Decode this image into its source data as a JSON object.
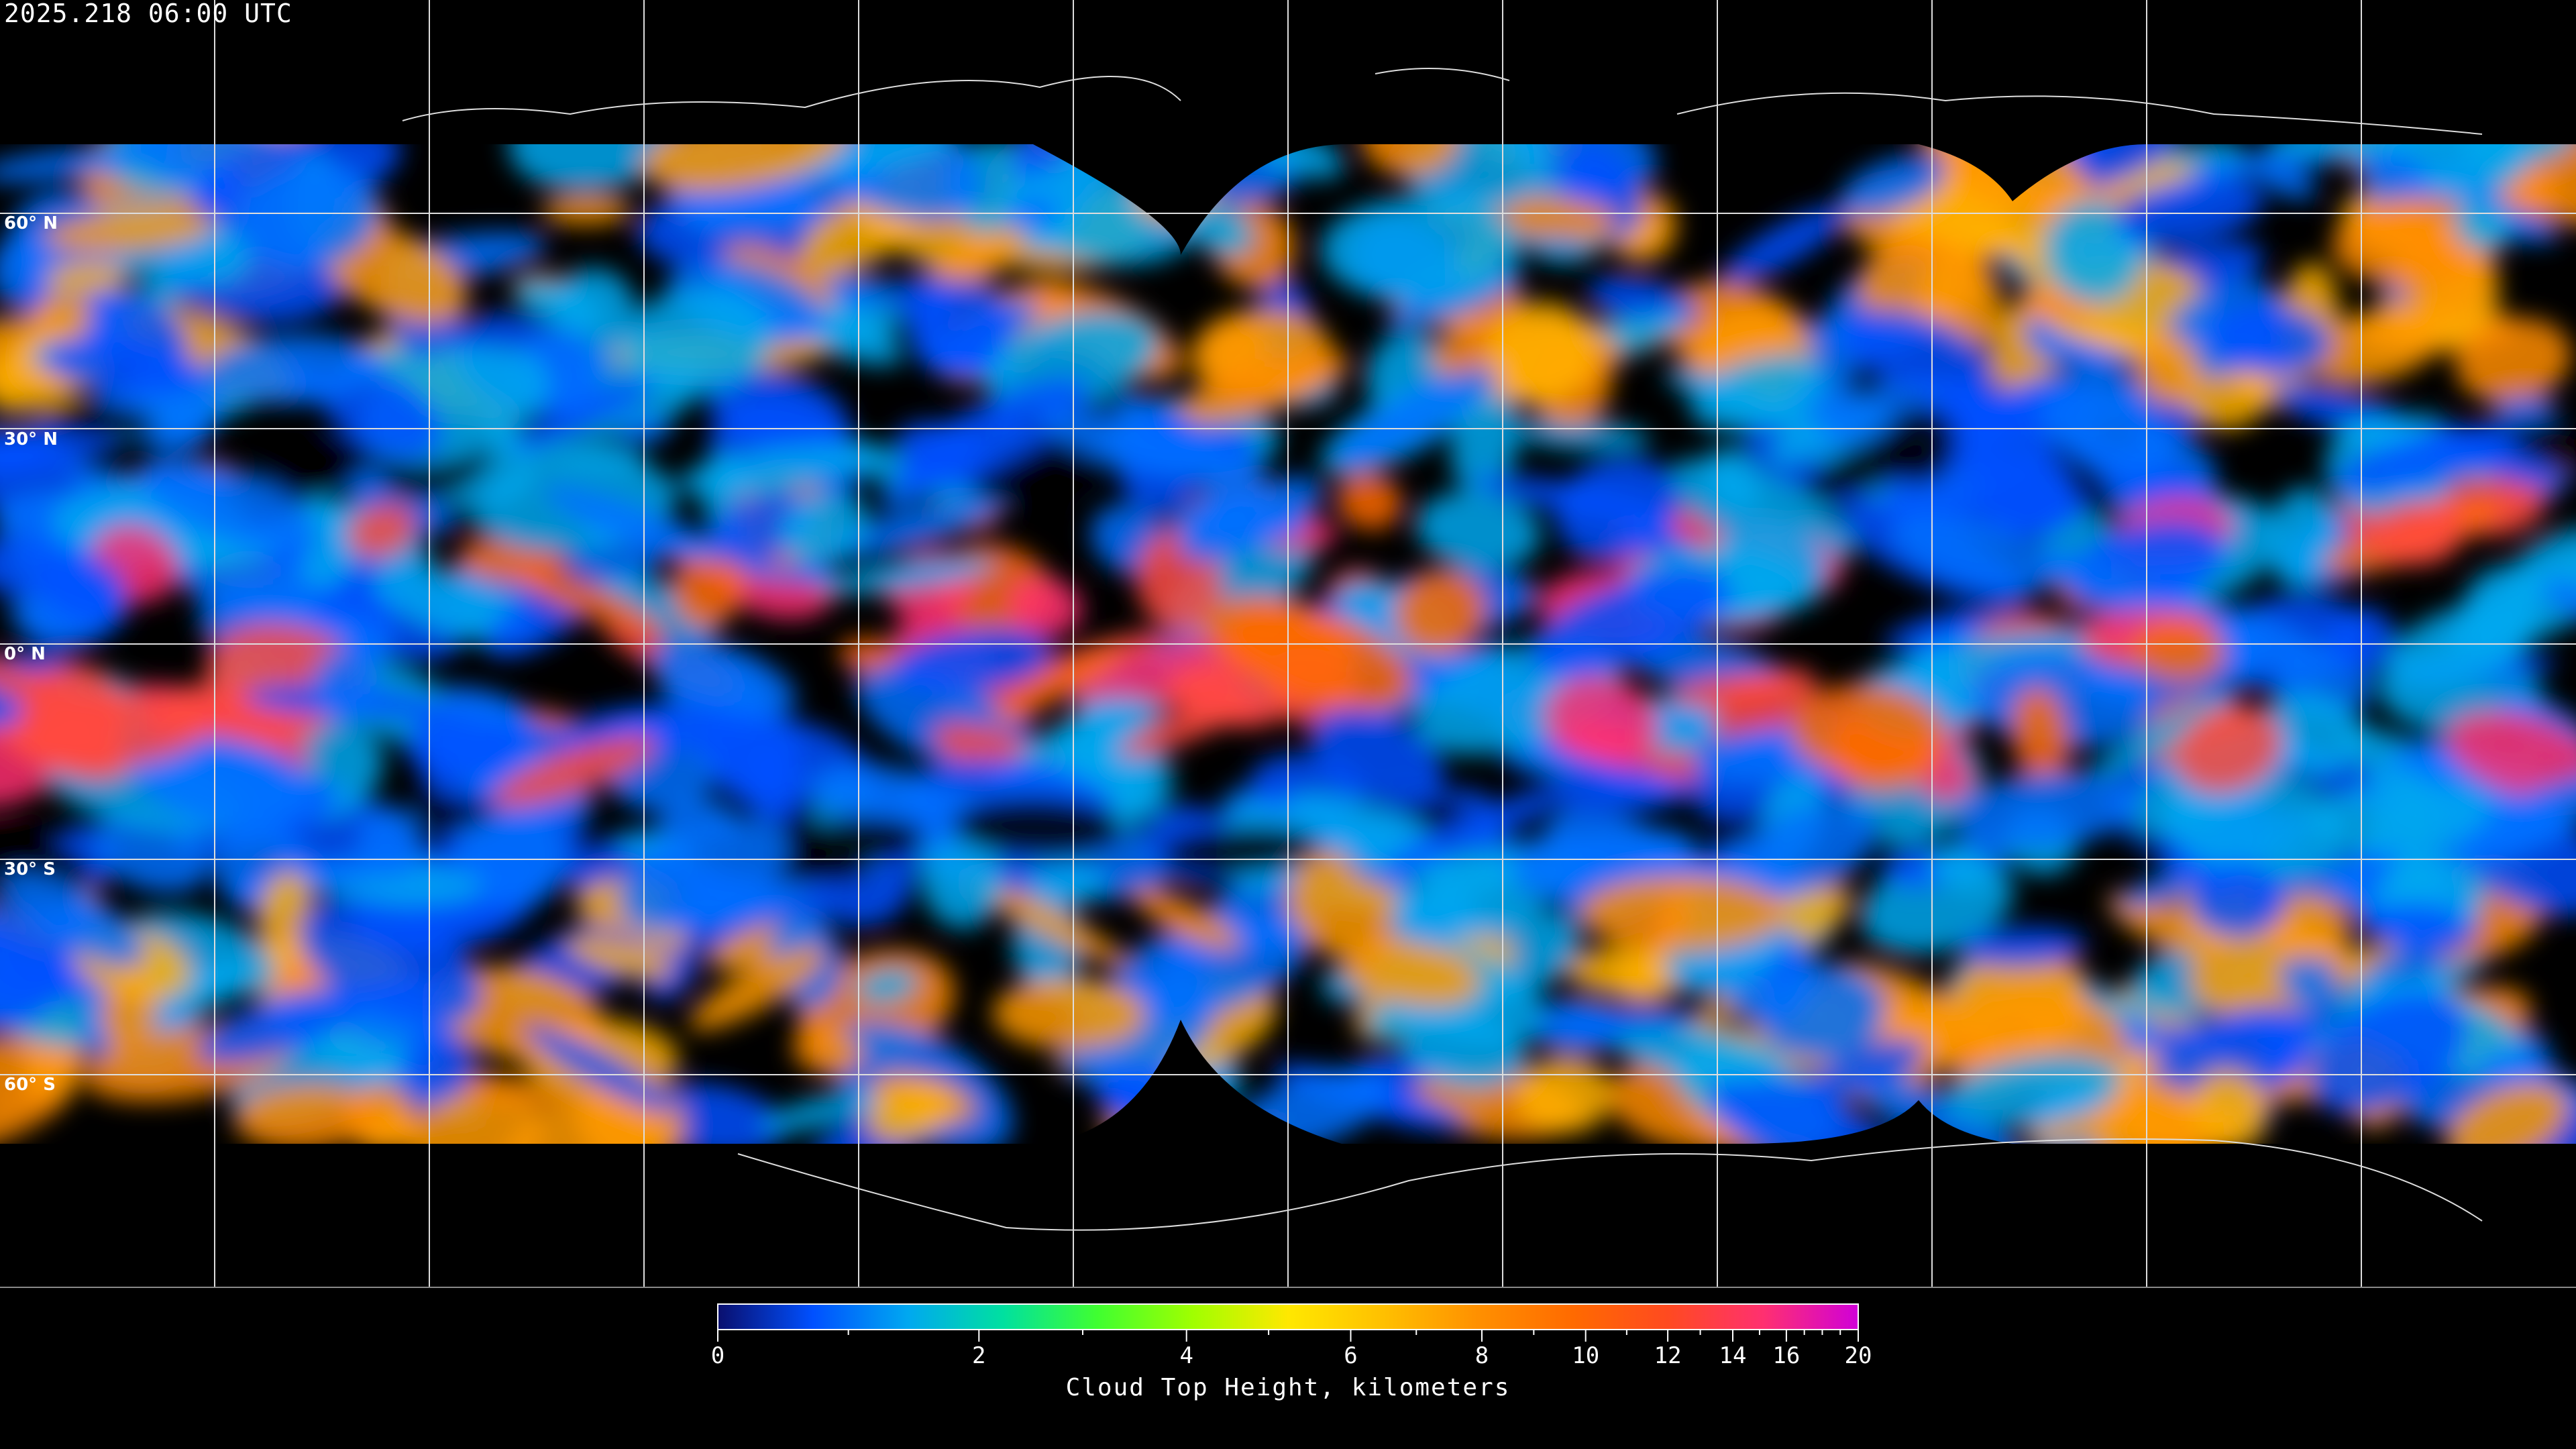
{
  "header": {
    "timestamp": "2025.218 06:00 UTC"
  },
  "map": {
    "projection": "equirectangular",
    "gridlines": true,
    "latitude_labels": [
      "60° N",
      "30° N",
      "0° N",
      "30° S",
      "60° S"
    ],
    "latitude_values": [
      60,
      30,
      0,
      -30,
      -60
    ],
    "longitude_grid_step_degrees": 30,
    "no_data_color": "#000000"
  },
  "colorbar": {
    "title": "Cloud Top Height, kilometers",
    "range": [
      0,
      20
    ],
    "tick_labels": [
      "0",
      "2",
      "4",
      "6",
      "8",
      "10",
      "12",
      "14",
      "16",
      "20"
    ],
    "tick_values": [
      0,
      2,
      4,
      6,
      8,
      10,
      12,
      14,
      16,
      20
    ],
    "minor_tick_values": [
      1,
      3,
      5,
      7,
      9,
      11,
      13,
      15,
      17,
      18,
      19
    ],
    "colors": [
      "#0a0f6e",
      "#0050ff",
      "#00a8f0",
      "#00e0a0",
      "#40ff30",
      "#a0ff00",
      "#ffe800",
      "#ffc000",
      "#ff9000",
      "#ff6a00",
      "#ff4a20",
      "#ff3070",
      "#d000d8"
    ]
  }
}
